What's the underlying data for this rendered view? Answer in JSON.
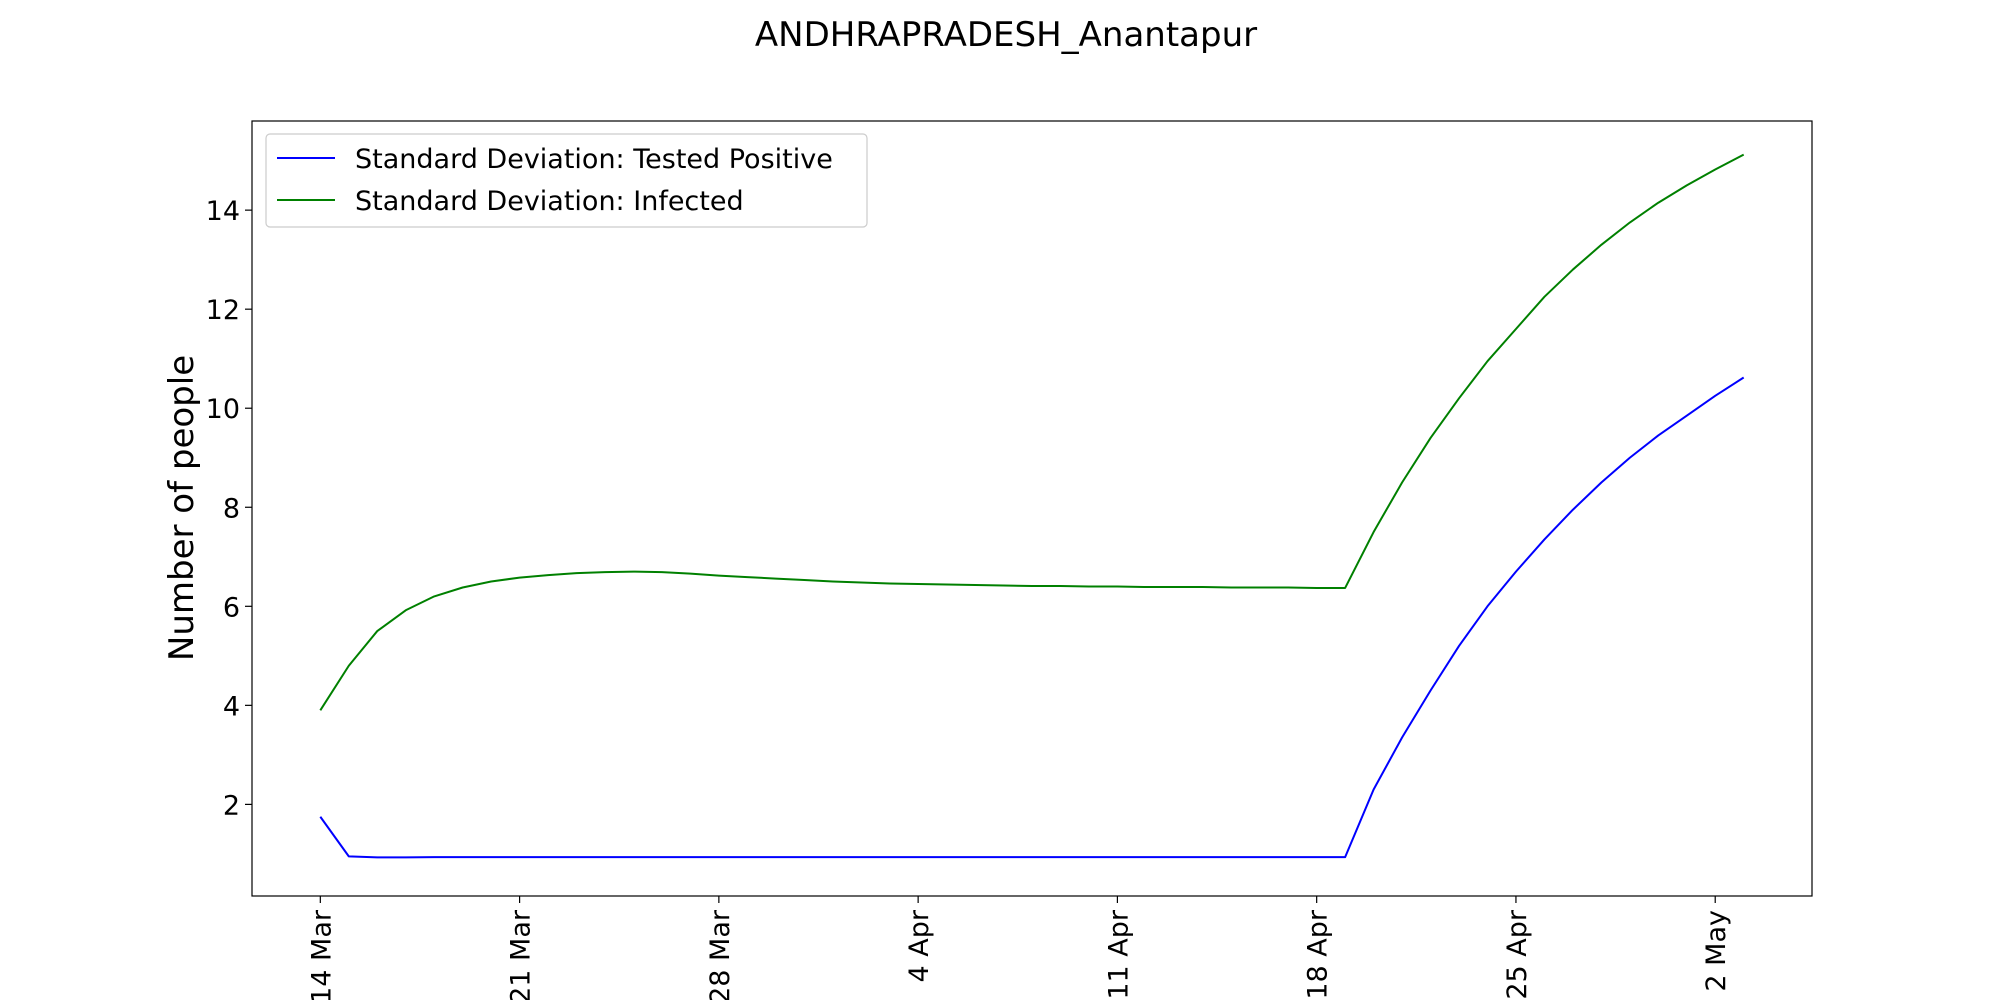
{
  "chart_data": {
    "type": "line",
    "title": "ANDHRAPRADESH_Anantapur",
    "xlabel": "",
    "ylabel": "Number of people",
    "x_start": "2020-03-14",
    "x": [
      "14 Mar",
      "15 Mar",
      "16 Mar",
      "17 Mar",
      "18 Mar",
      "19 Mar",
      "20 Mar",
      "21 Mar",
      "22 Mar",
      "23 Mar",
      "24 Mar",
      "25 Mar",
      "26 Mar",
      "27 Mar",
      "28 Mar",
      "29 Mar",
      "30 Mar",
      "31 Mar",
      "1 Apr",
      "2 Apr",
      "3 Apr",
      "4 Apr",
      "5 Apr",
      "6 Apr",
      "7 Apr",
      "8 Apr",
      "9 Apr",
      "10 Apr",
      "11 Apr",
      "12 Apr",
      "13 Apr",
      "14 Apr",
      "15 Apr",
      "16 Apr",
      "17 Apr",
      "18 Apr",
      "19 Apr",
      "20 Apr",
      "21 Apr",
      "22 Apr",
      "23 Apr",
      "24 Apr",
      "25 Apr",
      "26 Apr",
      "27 Apr",
      "28 Apr",
      "29 Apr",
      "30 Apr",
      "1 May",
      "2 May",
      "3 May"
    ],
    "x_ticks": [
      "14 Mar",
      "21 Mar",
      "28 Mar",
      "4 Apr",
      "11 Apr",
      "18 Apr",
      "25 Apr",
      "2 May"
    ],
    "x_tick_index": [
      0,
      7,
      14,
      21,
      28,
      35,
      42,
      49
    ],
    "xlim_index": [
      -2.4,
      52.4
    ],
    "y_ticks": [
      2,
      4,
      6,
      8,
      10,
      12,
      14
    ],
    "ylim": [
      0.15,
      15.8
    ],
    "legend_position": "upper-left",
    "series": [
      {
        "name": "Standard Deviation: Tested Positive",
        "color": "#0000ff",
        "values": [
          1.75,
          0.95,
          0.93,
          0.93,
          0.935,
          0.935,
          0.935,
          0.935,
          0.935,
          0.935,
          0.935,
          0.935,
          0.935,
          0.935,
          0.935,
          0.935,
          0.935,
          0.935,
          0.935,
          0.935,
          0.935,
          0.935,
          0.935,
          0.935,
          0.935,
          0.935,
          0.935,
          0.935,
          0.935,
          0.935,
          0.935,
          0.935,
          0.935,
          0.935,
          0.935,
          0.935,
          0.935,
          2.3,
          3.35,
          4.3,
          5.2,
          6.0,
          6.7,
          7.35,
          7.95,
          8.5,
          9.0,
          9.45,
          9.85,
          10.25,
          10.62
        ]
      },
      {
        "name": "Standard Deviation: Infected",
        "color": "#008000",
        "values": [
          3.9,
          4.8,
          5.5,
          5.92,
          6.2,
          6.38,
          6.5,
          6.58,
          6.63,
          6.67,
          6.69,
          6.7,
          6.69,
          6.66,
          6.62,
          6.59,
          6.56,
          6.53,
          6.5,
          6.48,
          6.46,
          6.45,
          6.44,
          6.43,
          6.42,
          6.41,
          6.41,
          6.4,
          6.4,
          6.39,
          6.39,
          6.39,
          6.38,
          6.38,
          6.38,
          6.37,
          6.37,
          7.5,
          8.5,
          9.4,
          10.2,
          10.95,
          11.6,
          12.25,
          12.8,
          13.3,
          13.75,
          14.15,
          14.5,
          14.82,
          15.12
        ]
      }
    ]
  }
}
